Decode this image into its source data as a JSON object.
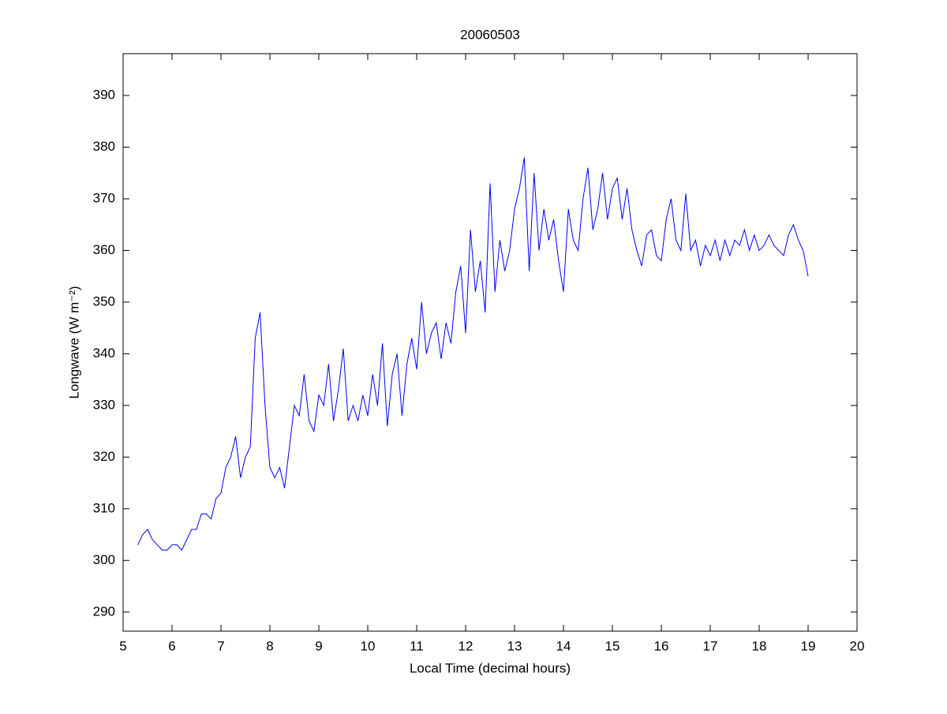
{
  "chart_data": {
    "type": "line",
    "title": "20060503",
    "x_label": "Local Time (decimal hours)",
    "y_label": "Longwave (W m⁻²)",
    "x": [
      5.3,
      5.4,
      5.5,
      5.6,
      5.7,
      5.8,
      5.9,
      6.0,
      6.1,
      6.2,
      6.3,
      6.4,
      6.5,
      6.6,
      6.7,
      6.8,
      6.9,
      7.0,
      7.1,
      7.2,
      7.3,
      7.4,
      7.5,
      7.6,
      7.7,
      7.8,
      7.9,
      8.0,
      8.1,
      8.2,
      8.3,
      8.4,
      8.5,
      8.6,
      8.7,
      8.8,
      8.9,
      9.0,
      9.1,
      9.2,
      9.3,
      9.4,
      9.5,
      9.6,
      9.7,
      9.8,
      9.9,
      10.0,
      10.1,
      10.2,
      10.3,
      10.4,
      10.5,
      10.6,
      10.7,
      10.8,
      10.9,
      11.0,
      11.1,
      11.2,
      11.3,
      11.4,
      11.5,
      11.6,
      11.7,
      11.8,
      11.9,
      12.0,
      12.1,
      12.2,
      12.3,
      12.4,
      12.5,
      12.6,
      12.7,
      12.8,
      12.9,
      13.0,
      13.1,
      13.2,
      13.3,
      13.4,
      13.5,
      13.6,
      13.7,
      13.8,
      13.9,
      14.0,
      14.1,
      14.2,
      14.3,
      14.4,
      14.5,
      14.6,
      14.7,
      14.8,
      14.9,
      15.0,
      15.1,
      15.2,
      15.3,
      15.4,
      15.5,
      15.6,
      15.7,
      15.8,
      15.9,
      16.0,
      16.1,
      16.2,
      16.3,
      16.4,
      16.5,
      16.6,
      16.7,
      16.8,
      16.9,
      17.0,
      17.1,
      17.2,
      17.3,
      17.4,
      17.5,
      17.6,
      17.7,
      17.8,
      17.9,
      18.0,
      18.1,
      18.2,
      18.3,
      18.4,
      18.5,
      18.6,
      18.7,
      18.8,
      18.9,
      19.0
    ],
    "values": [
      303,
      305,
      306,
      304,
      303,
      302,
      302,
      303,
      303,
      302,
      304,
      306,
      306,
      309,
      309,
      308,
      312,
      313,
      318,
      320,
      324,
      316,
      320,
      322,
      343,
      348,
      330,
      318,
      316,
      318,
      314,
      322,
      330,
      328,
      336,
      327,
      325,
      332,
      330,
      338,
      327,
      333,
      341,
      327,
      330,
      327,
      332,
      328,
      336,
      330,
      342,
      326,
      336,
      340,
      328,
      338,
      343,
      337,
      350,
      340,
      344,
      346,
      339,
      346,
      342,
      352,
      357,
      344,
      364,
      352,
      358,
      348,
      373,
      352,
      362,
      356,
      360,
      368,
      372,
      378,
      356,
      375,
      360,
      368,
      362,
      366,
      358,
      352,
      368,
      362,
      360,
      370,
      376,
      364,
      368,
      375,
      366,
      372,
      374,
      366,
      372,
      364,
      360,
      357,
      363,
      364,
      359,
      358,
      366,
      370,
      362,
      360,
      371,
      360,
      362,
      357,
      361,
      359,
      362,
      358,
      362,
      359,
      362,
      361,
      364,
      360,
      363,
      360,
      361,
      363,
      361,
      360,
      359,
      363,
      365,
      362,
      360,
      355
    ],
    "color": "#0000ff",
    "xlim": [
      5,
      20
    ],
    "xticks": [
      5,
      6,
      7,
      8,
      9,
      10,
      11,
      12,
      13,
      14,
      15,
      16,
      17,
      18,
      19,
      20
    ],
    "ylim": [
      286.3,
      398.1
    ],
    "yticks": [
      290,
      300,
      310,
      320,
      330,
      340,
      350,
      360,
      370,
      380,
      390
    ]
  }
}
